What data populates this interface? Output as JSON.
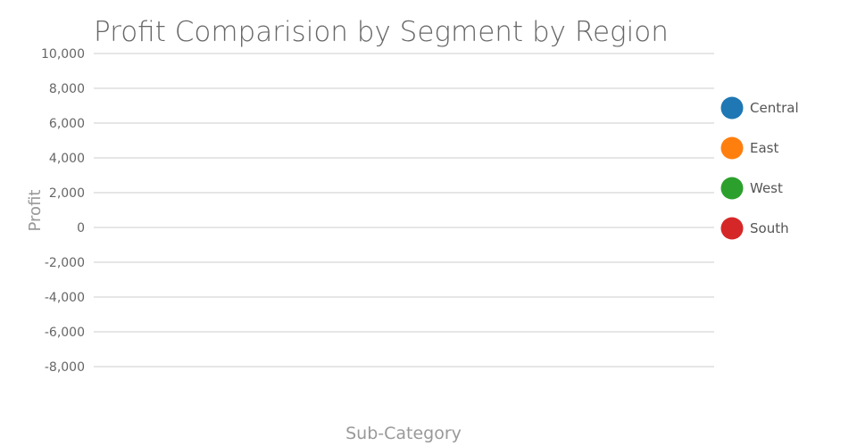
{
  "chart_data": {
    "type": "bar",
    "title": "Profit Comparision by Segment by Region",
    "xlabel": "Sub-Category",
    "ylabel": "Profit",
    "ylim": [
      -8000,
      10000
    ],
    "yticks": [
      "10,000",
      "8,000",
      "6,000",
      "4,000",
      "2,000",
      "0",
      "-2,000",
      "-4,000",
      "-6,000",
      "-8,000"
    ],
    "ytick_values": [
      10000,
      8000,
      6000,
      4000,
      2000,
      0,
      -2000,
      -4000,
      -6000,
      -8000
    ],
    "grid": true,
    "legend_position": "right",
    "categories": [],
    "series": [
      {
        "name": "Central",
        "color": "#1f77b4",
        "values": []
      },
      {
        "name": "East",
        "color": "#ff7f0e",
        "values": []
      },
      {
        "name": "West",
        "color": "#2ca02c",
        "values": []
      },
      {
        "name": "South",
        "color": "#d62728",
        "values": []
      }
    ]
  }
}
